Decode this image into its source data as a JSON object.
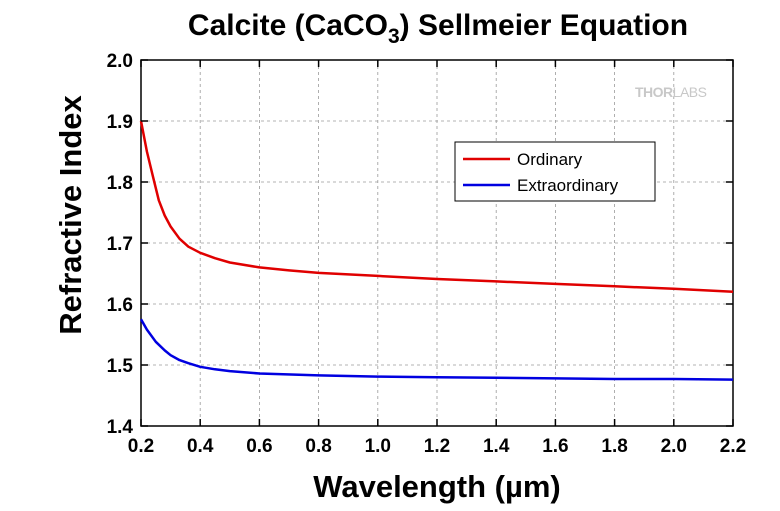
{
  "chart_data": {
    "type": "line",
    "title": {
      "main": "Calcite (CaCO",
      "subscript": "3",
      "rest": ") Sellmeier Equation"
    },
    "xlabel": "Wavelength (µm)",
    "ylabel": "Refractive Index",
    "xlim": [
      0.2,
      2.2
    ],
    "ylim": [
      1.4,
      2.0
    ],
    "x_ticks": [
      "0.2",
      "0.4",
      "0.6",
      "0.8",
      "1.0",
      "1.2",
      "1.4",
      "1.6",
      "1.8",
      "2.0",
      "2.2"
    ],
    "y_ticks": [
      "1.4",
      "1.5",
      "1.6",
      "1.7",
      "1.8",
      "1.9",
      "2.0"
    ],
    "grid": true,
    "legend_position": "top-right",
    "watermark": {
      "left": "THOR",
      "right": "LABS"
    },
    "series": [
      {
        "name": "Ordinary",
        "color": "#e00000",
        "x": [
          0.2,
          0.22,
          0.24,
          0.26,
          0.28,
          0.3,
          0.33,
          0.36,
          0.4,
          0.45,
          0.5,
          0.6,
          0.7,
          0.8,
          1.0,
          1.2,
          1.4,
          1.6,
          1.8,
          2.0,
          2.2
        ],
        "y": [
          1.9,
          1.85,
          1.81,
          1.77,
          1.745,
          1.727,
          1.707,
          1.694,
          1.684,
          1.675,
          1.668,
          1.66,
          1.655,
          1.651,
          1.646,
          1.641,
          1.637,
          1.633,
          1.629,
          1.625,
          1.62
        ]
      },
      {
        "name": "Extraordinary",
        "color": "#0000e0",
        "x": [
          0.2,
          0.22,
          0.25,
          0.28,
          0.3,
          0.33,
          0.36,
          0.4,
          0.45,
          0.5,
          0.6,
          0.8,
          1.0,
          1.2,
          1.4,
          1.6,
          1.8,
          2.0,
          2.2
        ],
        "y": [
          1.575,
          1.558,
          1.538,
          1.524,
          1.516,
          1.508,
          1.503,
          1.497,
          1.493,
          1.49,
          1.486,
          1.483,
          1.481,
          1.48,
          1.479,
          1.478,
          1.477,
          1.477,
          1.476
        ]
      }
    ]
  }
}
